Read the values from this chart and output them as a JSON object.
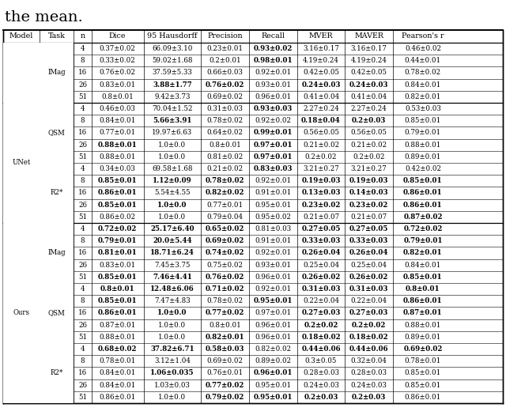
{
  "title_text": "the mean.",
  "headers": [
    "Model",
    "Task",
    "n",
    "Dice",
    "95 Hausdorff",
    "Precision",
    "Recall",
    "MVER",
    "MAVER",
    "Pearson's r"
  ],
  "rows": [
    [
      "",
      "IMag",
      "4",
      "0.37±0.02",
      "66.09±3.10",
      "0.23±0.01",
      "**0.93±0.02**",
      "3.16±0.17",
      "3.16±0.17",
      "0.46±0.02"
    ],
    [
      "",
      "",
      "8",
      "0.33±0.02",
      "59.02±1.68",
      "0.2±0.01",
      "**0.98±0.01**",
      "4.19±0.24",
      "4.19±0.24",
      "0.44±0.01"
    ],
    [
      "",
      "",
      "16",
      "0.76±0.02",
      "37.59±5.33",
      "0.66±0.03",
      "0.92±0.01",
      "0.42±0.05",
      "0.42±0.05",
      "0.78±0.02"
    ],
    [
      "",
      "",
      "26",
      "0.83±0.01",
      "**3.88±1.77**",
      "**0.76±0.02**",
      "0.93±0.01",
      "**0.24±0.03**",
      "**0.24±0.03**",
      "0.84±0.01"
    ],
    [
      "",
      "",
      "51",
      "0.8±0.01",
      "9.42±3.73",
      "0.69±0.02",
      "0.96±0.01",
      "0.41±0.04",
      "0.41±0.04",
      "0.82±0.01"
    ],
    [
      "UNet",
      "QSM",
      "4",
      "0.46±0.03",
      "70.04±1.52",
      "0.31±0.03",
      "**0.93±0.03**",
      "2.27±0.24",
      "2.27±0.24",
      "0.53±0.03"
    ],
    [
      "",
      "",
      "8",
      "0.84±0.01",
      "**5.66±3.91**",
      "0.78±0.02",
      "0.92±0.02",
      "**0.18±0.04**",
      "**0.2±0.03**",
      "0.85±0.01"
    ],
    [
      "",
      "",
      "16",
      "0.77±0.01",
      "19.97±6.63",
      "0.64±0.02",
      "**0.99±0.01**",
      "0.56±0.05",
      "0.56±0.05",
      "0.79±0.01"
    ],
    [
      "",
      "",
      "26",
      "**0.88±0.01**",
      "1.0±0.0",
      "0.8±0.01",
      "**0.97±0.01**",
      "0.21±0.02",
      "0.21±0.02",
      "0.88±0.01"
    ],
    [
      "",
      "",
      "51",
      "0.88±0.01",
      "1.0±0.0",
      "0.81±0.02",
      "**0.97±0.01**",
      "0.2±0.02",
      "0.2±0.02",
      "0.89±0.01"
    ],
    [
      "",
      "R2*",
      "4",
      "0.34±0.03",
      "69.58±1.68",
      "0.21±0.02",
      "**0.83±0.03**",
      "3.21±0.27",
      "3.21±0.27",
      "0.42±0.02"
    ],
    [
      "",
      "",
      "8",
      "**0.85±0.01**",
      "**1.12±0.09**",
      "**0.78±0.02**",
      "0.92±0.01",
      "**0.19±0.03**",
      "**0.19±0.03**",
      "**0.85±0.01**"
    ],
    [
      "",
      "",
      "16",
      "**0.86±0.01**",
      "5.54±4.55",
      "**0.82±0.02**",
      "0.91±0.01",
      "**0.13±0.03**",
      "**0.14±0.03**",
      "**0.86±0.01**"
    ],
    [
      "",
      "",
      "26",
      "**0.85±0.01**",
      "**1.0±0.0**",
      "0.77±0.01",
      "0.95±0.01",
      "**0.23±0.02**",
      "**0.23±0.02**",
      "**0.86±0.01**"
    ],
    [
      "",
      "",
      "51",
      "0.86±0.02",
      "1.0±0.0",
      "0.79±0.04",
      "0.95±0.02",
      "0.21±0.07",
      "0.21±0.07",
      "**0.87±0.02**"
    ],
    [
      "Ours",
      "IMag",
      "4",
      "**0.72±0.02**",
      "**25.17±6.40**",
      "**0.65±0.02**",
      "0.81±0.03",
      "**0.27±0.05**",
      "**0.27±0.05**",
      "**0.72±0.02**"
    ],
    [
      "",
      "",
      "8",
      "**0.79±0.01**",
      "**20.0±5.44**",
      "**0.69±0.02**",
      "0.91±0.01",
      "**0.33±0.03**",
      "**0.33±0.03**",
      "**0.79±0.01**"
    ],
    [
      "",
      "",
      "16",
      "**0.81±0.01**",
      "**18.71±6.24**",
      "**0.74±0.02**",
      "0.92±0.01",
      "**0.26±0.04**",
      "**0.26±0.04**",
      "**0.82±0.01**"
    ],
    [
      "",
      "",
      "26",
      "0.83±0.01",
      "7.45±3.75",
      "0.75±0.02",
      "0.93±0.01",
      "0.25±0.04",
      "0.25±0.04",
      "0.84±0.01"
    ],
    [
      "",
      "",
      "51",
      "**0.85±0.01**",
      "**7.46±4.41**",
      "**0.76±0.02**",
      "0.96±0.01",
      "**0.26±0.02**",
      "**0.26±0.02**",
      "**0.85±0.01**"
    ],
    [
      "",
      "QSM",
      "4",
      "**0.8±0.01**",
      "**12.48±6.06**",
      "**0.71±0.02**",
      "0.92±0.01",
      "**0.31±0.03**",
      "**0.31±0.03**",
      "**0.8±0.01**"
    ],
    [
      "",
      "",
      "8",
      "**0.85±0.01**",
      "7.47±4.83",
      "0.78±0.02",
      "**0.95±0.01**",
      "0.22±0.04",
      "0.22±0.04",
      "**0.86±0.01**"
    ],
    [
      "",
      "",
      "16",
      "**0.86±0.01**",
      "**1.0±0.0**",
      "**0.77±0.02**",
      "0.97±0.01",
      "**0.27±0.03**",
      "**0.27±0.03**",
      "**0.87±0.01**"
    ],
    [
      "",
      "",
      "26",
      "0.87±0.01",
      "1.0±0.0",
      "0.8±0.01",
      "0.96±0.01",
      "**0.2±0.02**",
      "**0.2±0.02**",
      "0.88±0.01"
    ],
    [
      "",
      "",
      "51",
      "0.88±0.01",
      "1.0±0.0",
      "**0.82±0.01**",
      "0.96±0.01",
      "**0.18±0.02**",
      "**0.18±0.02**",
      "0.89±0.01"
    ],
    [
      "",
      "R2*",
      "4",
      "**0.68±0.02**",
      "**37.82±6.71**",
      "**0.58±0.03**",
      "0.82±0.02",
      "**0.44±0.06**",
      "**0.44±0.06**",
      "**0.69±0.02**"
    ],
    [
      "",
      "",
      "8",
      "0.78±0.01",
      "3.12±1.04",
      "0.69±0.02",
      "0.89±0.02",
      "0.3±0.05",
      "0.32±0.04",
      "0.78±0.01"
    ],
    [
      "",
      "",
      "16",
      "0.84±0.01",
      "**1.06±0.035**",
      "0.76±0.01",
      "**0.96±0.01**",
      "0.28±0.03",
      "0.28±0.03",
      "0.85±0.01"
    ],
    [
      "",
      "",
      "26",
      "0.84±0.01",
      "1.03±0.03",
      "**0.77±0.02**",
      "0.95±0.01",
      "0.24±0.03",
      "0.24±0.03",
      "0.85±0.01"
    ],
    [
      "",
      "",
      "51",
      "0.86±0.01",
      "1.0±0.0",
      "**0.79±0.02**",
      "**0.95±0.01**",
      "**0.2±0.03**",
      "**0.2±0.03**",
      "0.86±0.01"
    ]
  ],
  "model_merges": [
    {
      "label": "",
      "start": 0,
      "end": 4
    },
    {
      "label": "UNet",
      "start": 5,
      "end": 14
    },
    {
      "label": "Ours",
      "start": 15,
      "end": 29
    }
  ],
  "task_merges": [
    {
      "label": "IMag",
      "start": 0,
      "end": 4
    },
    {
      "label": "QSM",
      "start": 5,
      "end": 9
    },
    {
      "label": "R2*",
      "start": 10,
      "end": 14
    },
    {
      "label": "IMag",
      "start": 15,
      "end": 19
    },
    {
      "label": "QSM",
      "start": 20,
      "end": 24
    },
    {
      "label": "R2*",
      "start": 25,
      "end": 29
    }
  ],
  "title_fontsize": 14,
  "header_fontsize": 6.8,
  "cell_fontsize": 6.2,
  "bg_color": "#ffffff"
}
